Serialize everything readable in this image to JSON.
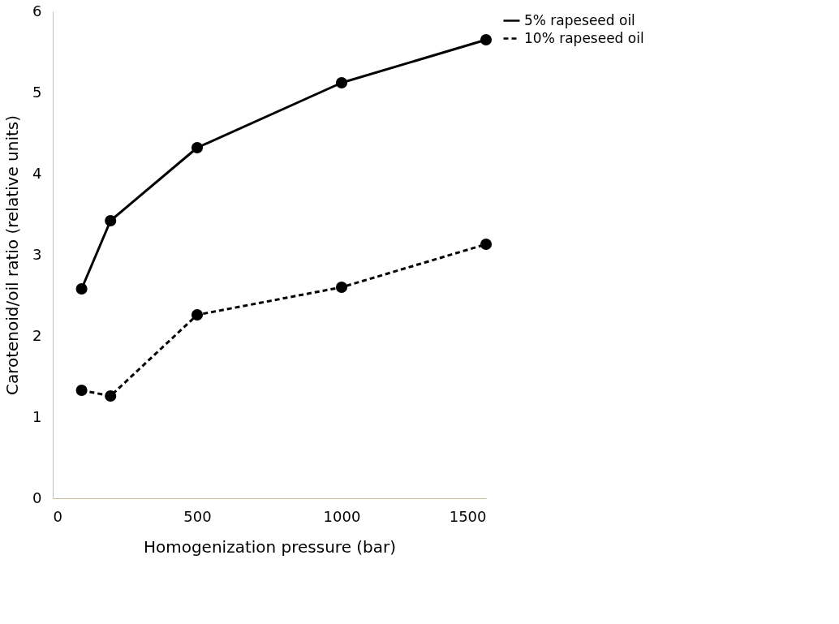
{
  "chart_data": {
    "type": "line",
    "xlabel": "Homogenization pressure (bar)",
    "ylabel": "Carotenoid/oil ratio (relative units)",
    "x": [
      100,
      200,
      500,
      1000,
      1500
    ],
    "xlim": [
      0,
      1500
    ],
    "xticks": [
      0,
      500,
      1000,
      1500
    ],
    "ylim": [
      0,
      6
    ],
    "yticks": [
      0,
      1,
      2,
      3,
      4,
      5,
      6
    ],
    "grid": false,
    "legend": "right",
    "marker": "circle",
    "series": [
      {
        "name": "5% rapeseed oil",
        "color": "#000000",
        "line_style": "solid",
        "values": [
          2.58,
          3.42,
          4.32,
          5.12,
          5.65
        ]
      },
      {
        "name": "10% rapeseed oil",
        "color": "#000000",
        "line_style": "dashed",
        "values": [
          1.33,
          1.26,
          2.26,
          2.6,
          3.13
        ]
      }
    ]
  }
}
